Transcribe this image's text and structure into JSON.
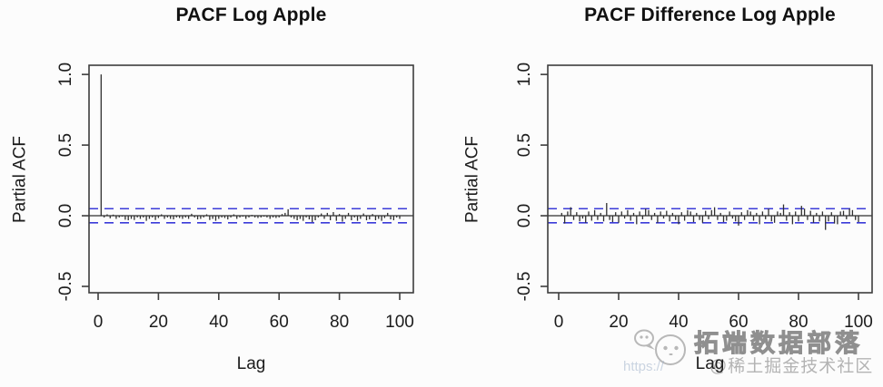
{
  "figure": {
    "background": "#fcfcfc",
    "colors": {
      "bars": "#2f2f2f",
      "axis": "#3d3d3d",
      "conf_band": "#3b3bd9",
      "text": "#1c1c1c"
    },
    "watermark": {
      "icon": "chat-mascot-icon",
      "brand": "拓端数据部落",
      "handle": "@稀土掘金技术社区",
      "url_fragment": "https://"
    }
  },
  "chart_data": [
    {
      "type": "bar",
      "title": "PACF Log Apple",
      "xlabel": "Lag",
      "ylabel": "Partial ACF",
      "xlim": [
        0,
        100
      ],
      "ylim": [
        -0.545,
        1.065
      ],
      "xticks": [
        0,
        20,
        40,
        60,
        80,
        100
      ],
      "yticks": [
        1.0,
        0.5,
        0.0,
        -0.5
      ],
      "grid": false,
      "legend": null,
      "conf_level": 0.05,
      "conf_style": "dashed-blue",
      "lag_start": 1,
      "values": [
        1.0,
        -0.012,
        0.01,
        -0.018,
        0.008,
        -0.022,
        -0.012,
        -0.006,
        -0.028,
        -0.032,
        -0.022,
        -0.03,
        -0.012,
        -0.022,
        -0.012,
        -0.036,
        -0.022,
        -0.012,
        -0.03,
        -0.016,
        0.01,
        -0.022,
        -0.012,
        -0.022,
        -0.026,
        -0.012,
        -0.016,
        -0.022,
        -0.012,
        -0.022,
        0.014,
        -0.012,
        -0.026,
        -0.022,
        -0.012,
        0.01,
        -0.03,
        -0.022,
        -0.036,
        -0.022,
        -0.012,
        -0.016,
        -0.026,
        -0.012,
        0.01,
        -0.022,
        -0.012,
        -0.006,
        -0.022,
        -0.012,
        0.006,
        -0.012,
        -0.016,
        -0.012,
        -0.006,
        -0.012,
        -0.022,
        -0.012,
        -0.016,
        -0.012,
        0.012,
        0.02,
        0.046,
        -0.012,
        -0.022,
        -0.032,
        -0.022,
        -0.036,
        -0.012,
        -0.026,
        -0.046,
        -0.032,
        -0.012,
        0.016,
        -0.022,
        0.02,
        -0.032,
        0.026,
        -0.036,
        0.012,
        -0.042,
        -0.022,
        0.02,
        -0.032,
        -0.012,
        -0.036,
        -0.022,
        0.016,
        -0.032,
        -0.026,
        0.012,
        -0.032,
        -0.022,
        -0.036,
        -0.016,
        0.02,
        -0.026,
        -0.032,
        -0.012,
        -0.022
      ]
    },
    {
      "type": "bar",
      "title": "PACF Difference Log Apple",
      "xlabel": "Lag",
      "ylabel": "Partial ACF",
      "xlim": [
        0,
        100
      ],
      "ylim": [
        -0.545,
        1.065
      ],
      "xticks": [
        0,
        20,
        40,
        60,
        80,
        100
      ],
      "yticks": [
        1.0,
        0.5,
        0.0,
        -0.5
      ],
      "grid": false,
      "legend": null,
      "conf_level": 0.05,
      "conf_style": "dashed-blue",
      "lag_start": 1,
      "values": [
        0.02,
        -0.055,
        0.03,
        0.06,
        -0.03,
        0.025,
        -0.04,
        -0.02,
        -0.05,
        0.03,
        -0.035,
        0.04,
        -0.03,
        0.02,
        -0.04,
        0.09,
        -0.03,
        -0.045,
        0.025,
        -0.05,
        0.03,
        -0.02,
        0.04,
        -0.035,
        0.02,
        -0.06,
        0.03,
        -0.025,
        0.05,
        0.04,
        -0.03,
        0.02,
        -0.05,
        0.03,
        -0.02,
        0.035,
        -0.04,
        0.02,
        -0.03,
        -0.06,
        0.025,
        -0.035,
        0.04,
        0.03,
        -0.045,
        0.02,
        -0.03,
        -0.05,
        0.035,
        -0.025,
        0.04,
        0.06,
        -0.03,
        0.02,
        -0.045,
        -0.035,
        0.03,
        -0.02,
        -0.04,
        -0.07,
        0.025,
        -0.03,
        0.04,
        0.03,
        -0.035,
        0.02,
        -0.06,
        0.03,
        -0.025,
        0.05,
        -0.04,
        -0.05,
        0.03,
        0.02,
        0.08,
        -0.035,
        0.025,
        -0.06,
        0.03,
        -0.04,
        0.07,
        0.05,
        -0.03,
        0.035,
        -0.05,
        0.02,
        -0.04,
        0.03,
        -0.1,
        -0.04,
        0.025,
        -0.055,
        -0.06,
        0.03,
        0.035,
        -0.025,
        0.05,
        0.04,
        -0.03,
        -0.045
      ]
    }
  ]
}
